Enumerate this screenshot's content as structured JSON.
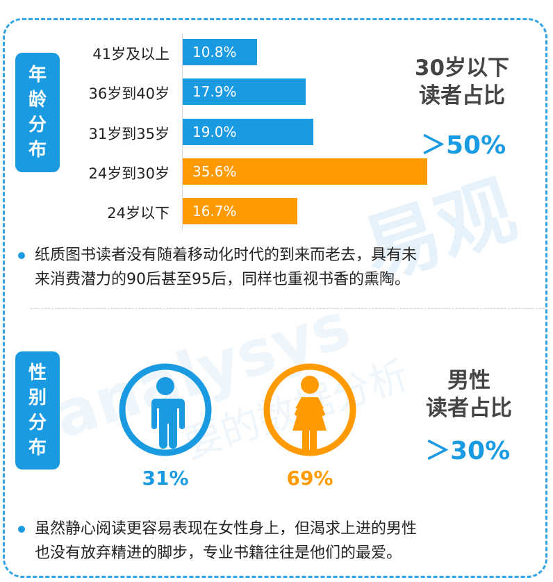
{
  "age_section": {
    "tag": [
      "年",
      "龄",
      "分",
      "布"
    ]
  },
  "gender_section": {
    "tag": [
      "性",
      "别",
      "分",
      "布"
    ]
  },
  "chart_data": {
    "type": "bar",
    "orientation": "horizontal",
    "categories": [
      "41岁及以上",
      "36岁到40岁",
      "31岁到35岁",
      "24岁到30岁",
      "24岁以下"
    ],
    "values": [
      10.8,
      17.9,
      19.0,
      35.6,
      16.7
    ],
    "value_labels": [
      "10.8%",
      "17.9%",
      "19.0%",
      "35.6%",
      "16.7%"
    ],
    "colors": [
      "#1a9ae0",
      "#1a9ae0",
      "#1a9ae0",
      "#ff9a00",
      "#ff9a00"
    ],
    "xlim": [
      0,
      40
    ]
  },
  "age_headline": {
    "line1": "30岁以下",
    "line2": "读者占比",
    "value": "＞50%"
  },
  "age_note": {
    "line1": "纸质图书读者没有随着移动化时代的到来而老去，具有未",
    "line2": "来消费潜力的90后甚至95后，同样也重视书香的熏陶。"
  },
  "gender": {
    "male_pct": "31%",
    "female_pct": "69%",
    "male_color": "#1a9ae0",
    "female_color": "#ff9a00",
    "headline_line1": "男性",
    "headline_line2": "读者占比",
    "headline_value": "＞30%"
  },
  "gender_note": {
    "line1": "虽然静心阅读更容易表现在女性身上，但渴求上进的男性",
    "line2": "也没有放弃精进的脚步，专业书籍往往是他们的最爱。"
  },
  "watermark": {
    "brand": "易观",
    "latin": "analysys",
    "slogan": "要的数据分析"
  },
  "icons": {
    "male": "male-person-icon",
    "female": "female-person-icon"
  }
}
